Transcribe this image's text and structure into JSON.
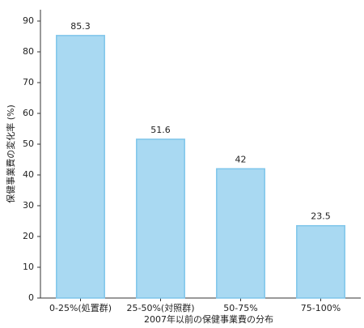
{
  "chart_data": {
    "type": "bar",
    "x_label": "2007年以前の保健事業費の分布",
    "y_label": "保健事業費の変化率 (%)",
    "categories": [
      "0-25%(処置群)",
      "25-50%(対照群)",
      "50-75%",
      "75-100%"
    ],
    "values": [
      85.3,
      51.6,
      42,
      23.5
    ],
    "color": "#a9d9f2",
    "edge_color": "#7ec5ea",
    "ylim": [
      0,
      90
    ],
    "yticks": [
      0,
      10,
      20,
      30,
      40,
      50,
      60,
      70,
      80,
      90
    ],
    "grid": false
  }
}
